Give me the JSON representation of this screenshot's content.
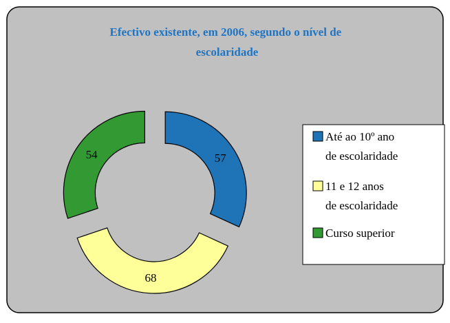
{
  "chart_data": {
    "type": "donut",
    "title": "Efectivo existente, em 2006, segundo o nível de escolaridade",
    "categories": [
      "Até ao 10º ano de escolaridade",
      "11 e 12 anos de escolaridade",
      "Curso superior"
    ],
    "values": [
      57,
      68,
      54
    ],
    "colors": [
      "#1f74b8",
      "#ffff99",
      "#339933"
    ],
    "legend": "right"
  }
}
